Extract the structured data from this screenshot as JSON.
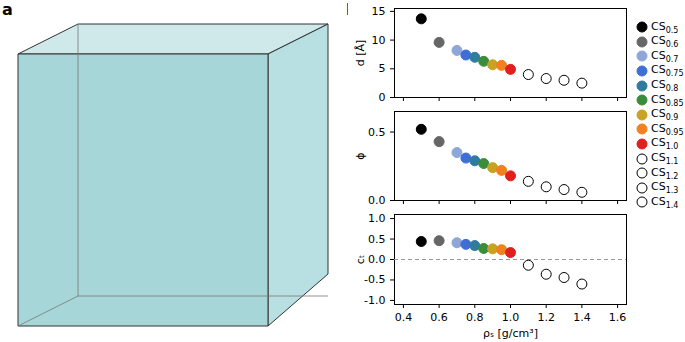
{
  "panel_labels": [
    "a",
    "b"
  ],
  "chart_data": [
    {
      "type": "scatter",
      "y_label": "d [Å]",
      "legend": "right",
      "tick_labels": "y",
      "xlim": [
        0.35,
        1.65
      ],
      "xticks": [
        {
          "value": 0.4,
          "label": "0.4"
        },
        {
          "value": 0.6,
          "label": "0.6"
        },
        {
          "value": 0.8,
          "label": "0.8"
        },
        {
          "value": 1.0,
          "label": "1.0"
        },
        {
          "value": 1.2,
          "label": "1.2"
        },
        {
          "value": 1.4,
          "label": "1.4"
        },
        {
          "value": 1.6,
          "label": "1.6"
        }
      ],
      "ylim": [
        0,
        15.5
      ],
      "yticks": [
        0,
        5,
        10,
        15
      ],
      "series": [
        {
          "name": "CS0.5",
          "color": "#000000",
          "marker": "filled",
          "x": [
            0.5
          ],
          "values": [
            13.7
          ]
        },
        {
          "name": "CS0.6",
          "color": "#666666",
          "marker": "filled",
          "x": [
            0.6
          ],
          "values": [
            9.6
          ]
        },
        {
          "name": "CS0.7",
          "color": "#8fa6d8",
          "marker": "filled",
          "x": [
            0.7
          ],
          "values": [
            8.2
          ]
        },
        {
          "name": "CS0.75",
          "color": "#3d6fd6",
          "marker": "filled",
          "x": [
            0.75
          ],
          "values": [
            7.4
          ]
        },
        {
          "name": "CS0.8",
          "color": "#2f7c9e",
          "marker": "filled",
          "x": [
            0.8
          ],
          "values": [
            7.0
          ]
        },
        {
          "name": "CS0.85",
          "color": "#3b8c3b",
          "marker": "filled",
          "x": [
            0.85
          ],
          "values": [
            6.3
          ]
        },
        {
          "name": "CS0.9",
          "color": "#c9a224",
          "marker": "filled",
          "x": [
            0.9
          ],
          "values": [
            5.7
          ]
        },
        {
          "name": "CS0.95",
          "color": "#f08020",
          "marker": "filled",
          "x": [
            0.95
          ],
          "values": [
            5.6
          ]
        },
        {
          "name": "CS1.0",
          "color": "#e21f1f",
          "marker": "filled",
          "x": [
            1.0
          ],
          "values": [
            4.9
          ]
        },
        {
          "name": "CS1.1",
          "color": "#000000",
          "marker": "open",
          "x": [
            1.1
          ],
          "values": [
            4.0
          ]
        },
        {
          "name": "CS1.2",
          "color": "#000000",
          "marker": "open",
          "x": [
            1.2
          ],
          "values": [
            3.3
          ]
        },
        {
          "name": "CS1.3",
          "color": "#000000",
          "marker": "open",
          "x": [
            1.3
          ],
          "values": [
            3.0
          ]
        },
        {
          "name": "CS1.4",
          "color": "#000000",
          "marker": "open",
          "x": [
            1.4
          ],
          "values": [
            2.5
          ]
        }
      ]
    },
    {
      "type": "scatter",
      "y_label": "ϕ",
      "tick_labels": "y",
      "xlim": [
        0.35,
        1.65
      ],
      "xticks": [
        {
          "value": 0.4,
          "label": "0.4"
        },
        {
          "value": 0.6,
          "label": "0.6"
        },
        {
          "value": 0.8,
          "label": "0.8"
        },
        {
          "value": 1.0,
          "label": "1.0"
        },
        {
          "value": 1.2,
          "label": "1.2"
        },
        {
          "value": 1.4,
          "label": "1.4"
        },
        {
          "value": 1.6,
          "label": "1.6"
        }
      ],
      "ylim": [
        0,
        0.65
      ],
      "yticks": [
        {
          "value": 0,
          "label": "0.0"
        },
        0.5
      ],
      "series": [
        {
          "name": "CS0.5",
          "color": "#000000",
          "marker": "filled",
          "x": [
            0.5
          ],
          "values": [
            0.52
          ]
        },
        {
          "name": "CS0.6",
          "color": "#666666",
          "marker": "filled",
          "x": [
            0.6
          ],
          "values": [
            0.43
          ]
        },
        {
          "name": "CS0.7",
          "color": "#8fa6d8",
          "marker": "filled",
          "x": [
            0.7
          ],
          "values": [
            0.35
          ]
        },
        {
          "name": "CS0.75",
          "color": "#3d6fd6",
          "marker": "filled",
          "x": [
            0.75
          ],
          "values": [
            0.31
          ]
        },
        {
          "name": "CS0.8",
          "color": "#2f7c9e",
          "marker": "filled",
          "x": [
            0.8
          ],
          "values": [
            0.29
          ]
        },
        {
          "name": "CS0.85",
          "color": "#3b8c3b",
          "marker": "filled",
          "x": [
            0.85
          ],
          "values": [
            0.27
          ]
        },
        {
          "name": "CS0.9",
          "color": "#c9a224",
          "marker": "filled",
          "x": [
            0.9
          ],
          "values": [
            0.24
          ]
        },
        {
          "name": "CS0.95",
          "color": "#f08020",
          "marker": "filled",
          "x": [
            0.95
          ],
          "values": [
            0.22
          ]
        },
        {
          "name": "CS1.0",
          "color": "#e21f1f",
          "marker": "filled",
          "x": [
            1.0
          ],
          "values": [
            0.18
          ]
        },
        {
          "name": "CS1.1",
          "color": "#000000",
          "marker": "open",
          "x": [
            1.1
          ],
          "values": [
            0.14
          ]
        },
        {
          "name": "CS1.2",
          "color": "#000000",
          "marker": "open",
          "x": [
            1.2
          ],
          "values": [
            0.1
          ]
        },
        {
          "name": "CS1.3",
          "color": "#000000",
          "marker": "open",
          "x": [
            1.3
          ],
          "values": [
            0.08
          ]
        },
        {
          "name": "CS1.4",
          "color": "#000000",
          "marker": "open",
          "x": [
            1.4
          ],
          "values": [
            0.06
          ]
        }
      ]
    },
    {
      "type": "scatter",
      "y_label": "cₜ",
      "x_label": "ρₛ [g/cm³]",
      "xlim": [
        0.35,
        1.65
      ],
      "xticks": [
        {
          "value": 0.4,
          "label": "0.4"
        },
        {
          "value": 0.6,
          "label": "0.6"
        },
        {
          "value": 0.8,
          "label": "0.8"
        },
        {
          "value": 1.0,
          "label": "1.0"
        },
        {
          "value": 1.2,
          "label": "1.2"
        },
        {
          "value": 1.4,
          "label": "1.4"
        },
        {
          "value": 1.6,
          "label": "1.6"
        }
      ],
      "ylim": [
        -1.1,
        1.1
      ],
      "yticks": [
        {
          "value": -1,
          "label": "-1.0"
        },
        -0.5,
        {
          "value": 0,
          "label": "0.0"
        },
        0.5,
        {
          "value": 1,
          "label": "1.0"
        }
      ],
      "hline": {
        "y": 0,
        "line_style": "dashed"
      },
      "series": [
        {
          "name": "CS0.5",
          "color": "#000000",
          "marker": "filled",
          "x": [
            0.5
          ],
          "values": [
            0.44
          ]
        },
        {
          "name": "CS0.6",
          "color": "#666666",
          "marker": "filled",
          "x": [
            0.6
          ],
          "values": [
            0.46
          ]
        },
        {
          "name": "CS0.7",
          "color": "#8fa6d8",
          "marker": "filled",
          "x": [
            0.7
          ],
          "values": [
            0.41
          ]
        },
        {
          "name": "CS0.75",
          "color": "#3d6fd6",
          "marker": "filled",
          "x": [
            0.75
          ],
          "values": [
            0.37
          ]
        },
        {
          "name": "CS0.8",
          "color": "#2f7c9e",
          "marker": "filled",
          "x": [
            0.8
          ],
          "values": [
            0.34
          ]
        },
        {
          "name": "CS0.85",
          "color": "#3b8c3b",
          "marker": "filled",
          "x": [
            0.85
          ],
          "values": [
            0.27
          ]
        },
        {
          "name": "CS0.9",
          "color": "#c9a224",
          "marker": "filled",
          "x": [
            0.9
          ],
          "values": [
            0.26
          ]
        },
        {
          "name": "CS0.95",
          "color": "#f08020",
          "marker": "filled",
          "x": [
            0.95
          ],
          "values": [
            0.24
          ]
        },
        {
          "name": "CS1.0",
          "color": "#e21f1f",
          "marker": "filled",
          "x": [
            1.0
          ],
          "values": [
            0.17
          ]
        },
        {
          "name": "CS1.1",
          "color": "#000000",
          "marker": "open",
          "x": [
            1.1
          ],
          "values": [
            -0.14
          ]
        },
        {
          "name": "CS1.2",
          "color": "#000000",
          "marker": "open",
          "x": [
            1.2
          ],
          "values": [
            -0.36
          ]
        },
        {
          "name": "CS1.3",
          "color": "#000000",
          "marker": "open",
          "x": [
            1.3
          ],
          "values": [
            -0.44
          ]
        },
        {
          "name": "CS1.4",
          "color": "#000000",
          "marker": "open",
          "x": [
            1.4
          ],
          "values": [
            -0.6
          ]
        }
      ]
    }
  ]
}
